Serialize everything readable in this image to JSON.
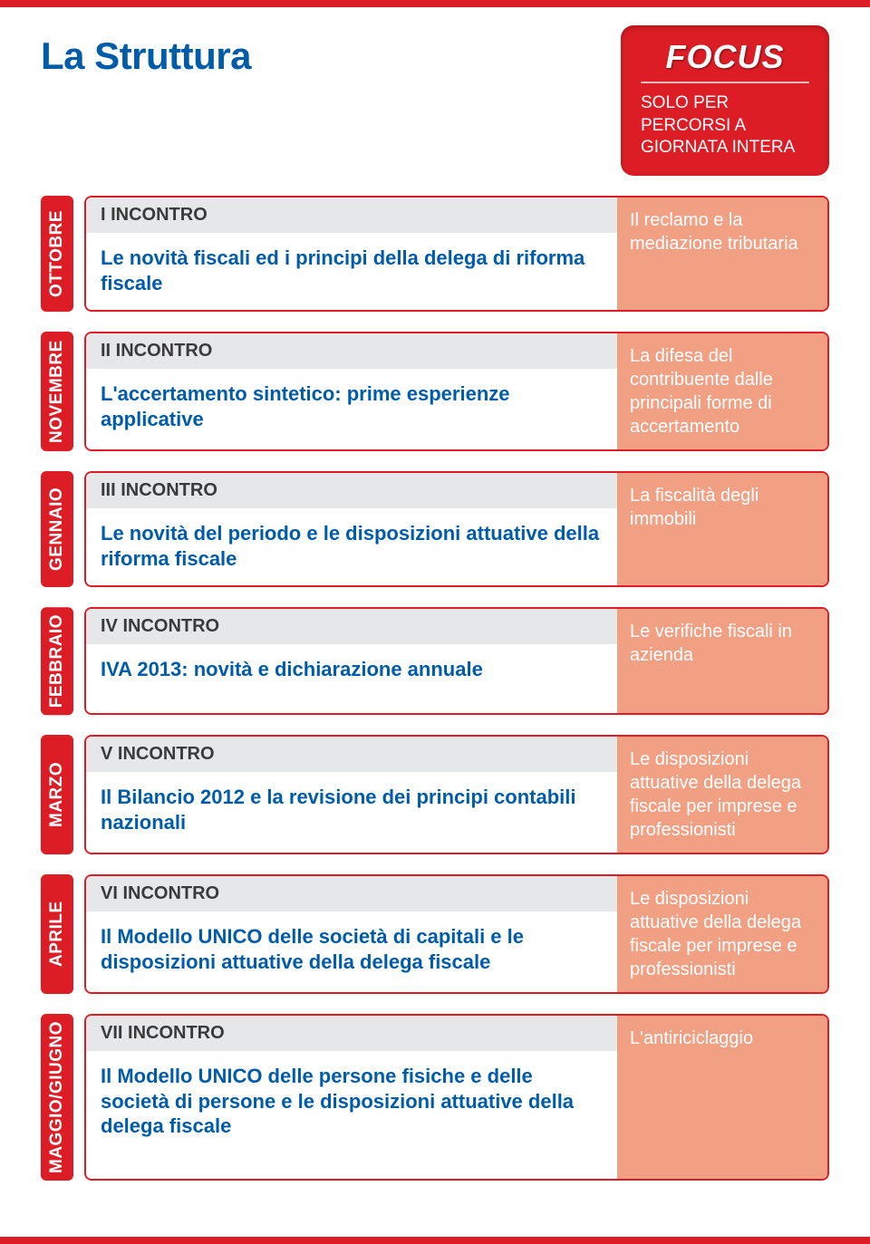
{
  "colors": {
    "red": "#dc1d25",
    "blue": "#005ca9",
    "salmon": "#f2a084",
    "grayHeader": "#e6e7e9",
    "grayText": "#3a3a3a"
  },
  "title": "La Struttura",
  "focus": {
    "heading": "FOCUS",
    "subtitle": "SOLO PER PERCORSI A GIORNATA INTERA"
  },
  "rows": [
    {
      "month": "OTTOBRE",
      "incontro": "I INCONTRO",
      "topic": "Le novità fiscali ed i principi della delega di riforma fiscale",
      "focus": "Il reclamo e la mediazione tributaria"
    },
    {
      "month": "NOVEMBRE",
      "incontro": "II INCONTRO",
      "topic": "L'accertamento sintetico: prime esperienze applicative",
      "focus": "La difesa del contribuente dalle principali forme di accertamento"
    },
    {
      "month": "GENNAIO",
      "incontro": "III INCONTRO",
      "topic": "Le novità del periodo e le disposizioni attuative della riforma fiscale",
      "focus": "La fiscalità degli immobili"
    },
    {
      "month": "FEBBRAIO",
      "incontro": "IV INCONTRO",
      "topic": "IVA 2013: novità e dichiarazione annuale",
      "focus": "Le verifiche fiscali in azienda"
    },
    {
      "month": "MARZO",
      "incontro": "V INCONTRO",
      "topic": "Il Bilancio 2012 e la revisione dei principi contabili nazionali",
      "focus": "Le disposizioni attuative della delega fiscale per imprese e professionisti"
    },
    {
      "month": "APRILE",
      "incontro": "VI INCONTRO",
      "topic": "Il Modello UNICO delle società di capitali e le disposizioni attuative della delega fiscale",
      "focus": "Le disposizioni attuative della delega fiscale per imprese e professionisti"
    },
    {
      "month": "MAGGIO/GIUGNO",
      "incontro": "VII INCONTRO",
      "topic": "Il Modello UNICO delle persone fisiche e delle società di persone e le disposizioni attuative della delega fiscale",
      "focus": "L'antiriciclaggio"
    }
  ]
}
